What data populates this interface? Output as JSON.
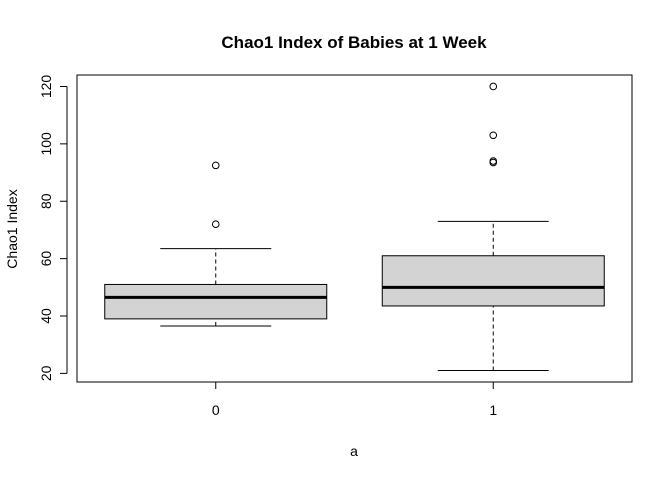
{
  "chart_data": {
    "type": "boxplot",
    "title": "Chao1 Index of Babies at 1 Week",
    "xlabel": "a",
    "ylabel": "Chao1 Index",
    "categories": [
      "0",
      "1"
    ],
    "ylim": [
      17,
      124
    ],
    "yticks": [
      20,
      40,
      60,
      80,
      100,
      120
    ],
    "grid": false,
    "box_fill": "#d3d3d3",
    "boxes": [
      {
        "category": "0",
        "whisker_low": 36.5,
        "q1": 39,
        "median": 46.5,
        "q3": 51,
        "whisker_high": 63.5,
        "outliers": [
          72,
          92.5
        ]
      },
      {
        "category": "1",
        "whisker_low": 21,
        "q1": 43.5,
        "median": 50,
        "q3": 61,
        "whisker_high": 73,
        "outliers": [
          93.5,
          94,
          103,
          120
        ]
      }
    ]
  }
}
